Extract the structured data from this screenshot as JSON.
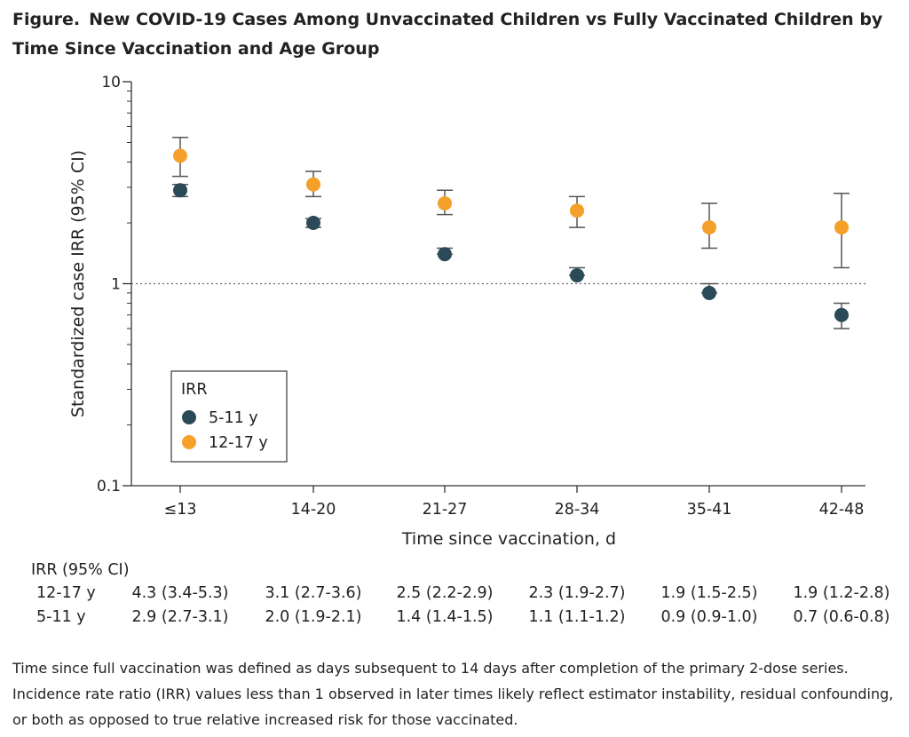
{
  "figure": {
    "label": "Figure.",
    "title": "New COVID-19 Cases Among Unvaccinated Children vs Fully Vaccinated Children by Time Since Vaccination and Age Group",
    "note": "Time since full vaccination was defined as days subsequent to 14 days after completion of the primary 2-dose series. Incidence rate ratio (IRR) values less than 1 observed in later times likely reflect estimator instability, residual confounding, or both as opposed to true relative increased risk for those vaccinated."
  },
  "chart_data": {
    "type": "scatter",
    "xlabel": "Time since vaccination, d",
    "ylabel": "Standardized case IRR (95% CI)",
    "yscale": "log",
    "ylim": [
      0.1,
      10
    ],
    "yticks": [
      "0.1",
      "1",
      "10"
    ],
    "reference_line": 1,
    "categories": [
      "≤13",
      "14-20",
      "21-27",
      "28-34",
      "35-41",
      "42-48"
    ],
    "legend": {
      "title": "IRR",
      "position": "lower-left"
    },
    "series": [
      {
        "name": "5-11 y",
        "color": "#2b4a57",
        "values": [
          2.9,
          2.0,
          1.4,
          1.1,
          0.9,
          0.7
        ],
        "ci_low": [
          2.7,
          1.9,
          1.4,
          1.1,
          0.9,
          0.6
        ],
        "ci_high": [
          3.1,
          2.1,
          1.5,
          1.2,
          1.0,
          0.8
        ]
      },
      {
        "name": "12-17 y",
        "color": "#f5a02a",
        "values": [
          4.3,
          3.1,
          2.5,
          2.3,
          1.9,
          1.9
        ],
        "ci_low": [
          3.4,
          2.7,
          2.2,
          1.9,
          1.5,
          1.2
        ],
        "ci_high": [
          5.3,
          3.6,
          2.9,
          2.7,
          2.5,
          2.8
        ]
      }
    ]
  },
  "table": {
    "header": "IRR (95% CI)",
    "rows": [
      {
        "label": "12-17 y",
        "cells": [
          "4.3 (3.4-5.3)",
          "3.1 (2.7-3.6)",
          "2.5 (2.2-2.9)",
          "2.3 (1.9-2.7)",
          "1.9 (1.5-2.5)",
          "1.9 (1.2-2.8)"
        ]
      },
      {
        "label": "5-11 y",
        "cells": [
          "2.9 (2.7-3.1)",
          "2.0 (1.9-2.1)",
          "1.4 (1.4-1.5)",
          "1.1 (1.1-1.2)",
          "0.9 (0.9-1.0)",
          "0.7 (0.6-0.8)"
        ]
      }
    ]
  }
}
